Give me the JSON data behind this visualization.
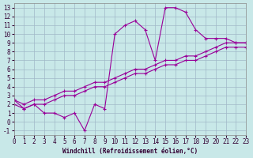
{
  "xlabel": "Windchill (Refroidissement éolien,°C)",
  "ylabel": "",
  "bg_color": "#c8e8e8",
  "grid_color": "#a0b8c8",
  "line_color": "#990099",
  "xlim": [
    0,
    23
  ],
  "ylim": [
    -1.5,
    13.5
  ],
  "xticks": [
    0,
    1,
    2,
    3,
    4,
    5,
    6,
    7,
    8,
    9,
    10,
    11,
    12,
    13,
    14,
    15,
    16,
    17,
    18,
    19,
    20,
    21,
    22,
    23
  ],
  "yticks": [
    -1,
    0,
    1,
    2,
    3,
    4,
    5,
    6,
    7,
    8,
    9,
    10,
    11,
    12,
    13
  ],
  "curve1_y": [
    2.5,
    1.5,
    2.0,
    1.0,
    1.0,
    0.5,
    1.0,
    -1.0,
    2.0,
    1.5,
    10.0,
    11.0,
    11.5,
    10.5,
    7.0,
    13.0,
    13.0,
    12.5,
    10.5,
    9.5,
    9.5,
    9.5,
    9.0,
    9.0
  ],
  "curve2_y": [
    2.5,
    2.0,
    2.5,
    2.5,
    3.0,
    3.5,
    3.5,
    4.0,
    4.5,
    4.5,
    5.0,
    5.5,
    6.0,
    6.0,
    6.5,
    7.0,
    7.0,
    7.5,
    7.5,
    8.0,
    8.5,
    9.0,
    9.0,
    9.0
  ],
  "curve3_y": [
    2.0,
    1.5,
    2.0,
    2.0,
    2.5,
    3.0,
    3.0,
    3.5,
    4.0,
    4.0,
    4.5,
    5.0,
    5.5,
    5.5,
    6.0,
    6.5,
    6.5,
    7.0,
    7.0,
    7.5,
    8.0,
    8.5,
    8.5,
    8.5
  ]
}
